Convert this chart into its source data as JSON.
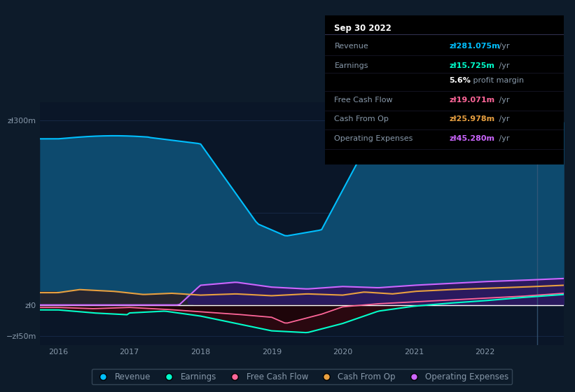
{
  "bg_color": "#0d1b2a",
  "plot_bg_color": "#0d1b2a",
  "chart_bg_color": "#0a1628",
  "grid_color": "#1e3358",
  "text_color": "#8899aa",
  "revenue_color": "#00bfff",
  "revenue_fill": "#0d4a6e",
  "earnings_color": "#00ffcc",
  "earnings_fill_neg": "#3a0a1a",
  "free_cash_flow_color": "#ff6699",
  "cash_from_op_color": "#e8a040",
  "op_expenses_color": "#cc66ff",
  "op_expenses_fill": "#2a1a5e",
  "vline_color": "#3a5a7a",
  "white_line": "#ffffff",
  "xlabel_years": [
    "2016",
    "2017",
    "2018",
    "2019",
    "2020",
    "2021",
    "2022"
  ],
  "legend": [
    {
      "label": "Revenue",
      "color": "#00bfff"
    },
    {
      "label": "Earnings",
      "color": "#00ffcc"
    },
    {
      "label": "Free Cash Flow",
      "color": "#ff6699"
    },
    {
      "label": "Cash From Op",
      "color": "#e8a040"
    },
    {
      "label": "Operating Expenses",
      "color": "#cc66ff"
    }
  ],
  "tooltip": {
    "date": "Sep 30 2022",
    "revenue_val": "zł281.075m",
    "revenue_color": "#00bfff",
    "earnings_val": "zł15.725m",
    "earnings_color": "#00ffcc",
    "profit_margin": "5.6%",
    "fcf_val": "zł19.071m",
    "fcf_color": "#ff6699",
    "cash_op_val": "zł25.978m",
    "cash_op_color": "#e8a040",
    "op_exp_val": "zł45.280m",
    "op_exp_color": "#cc66ff",
    "label_color": "#8899aa",
    "bg": "#000000"
  }
}
